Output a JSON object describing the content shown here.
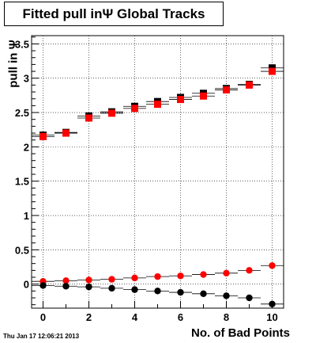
{
  "title": "Fitted pull inΨ   Global Tracks",
  "timestamp": "Thu Jan 17 12:06:21 2013",
  "chart_data": {
    "type": "scatter",
    "xlabel": "No. of Bad Points",
    "ylabel": "pull in Ψ",
    "xlim": [
      -0.5,
      10.5
    ],
    "ylim": [
      -0.35,
      3.62
    ],
    "xticks": [
      0,
      2,
      4,
      6,
      8,
      10
    ],
    "yticks": [
      0,
      0.5,
      1,
      1.5,
      2,
      2.5,
      3,
      3.5
    ],
    "ytick_labels": [
      "0",
      "0.5",
      "1",
      "1.5",
      "2",
      "2.5",
      "3",
      "3.5"
    ],
    "grid": true,
    "series": [
      {
        "color": "#000000",
        "marker": "square",
        "x": [
          0,
          1,
          2,
          3,
          4,
          5,
          6,
          7,
          8,
          9,
          10
        ],
        "y": [
          2.17,
          2.21,
          2.45,
          2.51,
          2.59,
          2.66,
          2.72,
          2.78,
          2.85,
          2.91,
          3.15
        ]
      },
      {
        "color": "#ff0000",
        "marker": "square",
        "x": [
          0,
          1,
          2,
          3,
          4,
          5,
          6,
          7,
          8,
          9,
          10
        ],
        "y": [
          2.15,
          2.2,
          2.42,
          2.49,
          2.56,
          2.62,
          2.69,
          2.74,
          2.83,
          2.9,
          3.1
        ]
      },
      {
        "color": "#ff0000",
        "marker": "circle",
        "x": [
          0,
          1,
          2,
          3,
          4,
          5,
          6,
          7,
          8,
          9,
          10
        ],
        "y": [
          0.04,
          0.05,
          0.06,
          0.07,
          0.09,
          0.11,
          0.12,
          0.14,
          0.16,
          0.2,
          0.27
        ]
      },
      {
        "color": "#000000",
        "marker": "circle",
        "x": [
          0,
          1,
          2,
          3,
          4,
          5,
          6,
          7,
          8,
          9,
          10
        ],
        "y": [
          -0.02,
          -0.03,
          -0.04,
          -0.06,
          -0.08,
          -0.1,
          -0.12,
          -0.14,
          -0.17,
          -0.2,
          -0.29
        ]
      }
    ]
  }
}
